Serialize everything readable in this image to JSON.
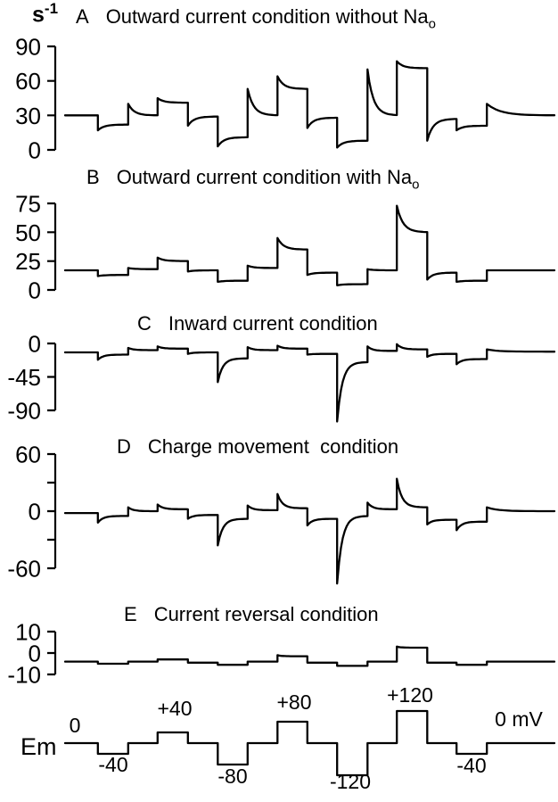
{
  "figure": {
    "unit_base": "s",
    "unit_exponent": "-1",
    "background": "#ffffff",
    "line_color": "#000000"
  },
  "protocol": {
    "axis_label": "Em",
    "start_label": "0",
    "end_label": "0 mV",
    "unit": "mV",
    "step_labels": [
      {
        "text": "-40"
      },
      {
        "text": "+40"
      },
      {
        "text": "-80"
      },
      {
        "text": "+80"
      },
      {
        "text": "-120"
      },
      {
        "text": "+120"
      },
      {
        "text": "-40"
      }
    ]
  },
  "chart_data": {
    "type": "line",
    "description": "Simulated turnover traces (s-1) of five pump conditions A-E responding to the membrane potential step protocol Em; x axis is time, shared protocol timing for all panels",
    "time_bounds": [
      0,
      0.067,
      0.129,
      0.189,
      0.251,
      0.312,
      0.373,
      0.434,
      0.495,
      0.556,
      0.618,
      0.678,
      0.74,
      0.8,
      0.862,
      1.0
    ],
    "voltage_steps_mV": [
      0,
      -40,
      0,
      40,
      0,
      -80,
      0,
      80,
      0,
      -120,
      0,
      120,
      0,
      -40,
      0
    ],
    "panels": [
      {
        "panel_label": "A",
        "title": "Outward current condition without Na",
        "title_subscript": "o",
        "ylabel": "s-1",
        "ylim": [
          0,
          90
        ],
        "yticks": [
          {
            "v": 90,
            "label": "90"
          },
          {
            "v": 60,
            "label": "60"
          },
          {
            "v": 30,
            "label": "30"
          },
          {
            "v": 0,
            "label": "0"
          }
        ],
        "relax_rate": 5,
        "segments": [
          [
            30,
            30
          ],
          [
            17,
            22
          ],
          [
            40,
            30
          ],
          [
            45,
            41
          ],
          [
            21,
            29
          ],
          [
            3,
            11
          ],
          [
            53,
            30
          ],
          [
            64,
            53
          ],
          [
            19,
            28
          ],
          [
            2,
            8
          ],
          [
            70,
            30
          ],
          [
            77,
            71
          ],
          [
            8,
            27
          ],
          [
            17,
            21
          ],
          [
            40,
            30
          ]
        ]
      },
      {
        "panel_label": "B",
        "title": "Outward current condition with Na",
        "title_subscript": "o",
        "ylabel": "s-1",
        "ylim": [
          0,
          75
        ],
        "yticks": [
          {
            "v": 75,
            "label": "75"
          },
          {
            "v": 50,
            "label": "50"
          },
          {
            "v": 25,
            "label": "25"
          },
          {
            "v": 0,
            "label": "0"
          }
        ],
        "relax_rate": 5,
        "segments": [
          [
            17,
            17
          ],
          [
            12,
            13
          ],
          [
            19,
            18
          ],
          [
            28,
            25
          ],
          [
            16,
            17
          ],
          [
            7,
            8
          ],
          [
            21,
            19
          ],
          [
            45,
            35
          ],
          [
            13,
            15
          ],
          [
            4,
            5
          ],
          [
            18,
            17
          ],
          [
            73,
            50
          ],
          [
            9,
            15
          ],
          [
            7,
            8
          ],
          [
            17,
            17
          ]
        ]
      },
      {
        "panel_label": "C",
        "title": "Inward current condition",
        "title_subscript": "",
        "ylabel": "s-1",
        "ylim": [
          -90,
          0
        ],
        "yticks": [
          {
            "v": 0,
            "label": "0"
          },
          {
            "v": -45,
            "label": "-45"
          },
          {
            "v": -90,
            "label": "-90"
          }
        ],
        "relax_rate": 6,
        "segments": [
          [
            -12,
            -12
          ],
          [
            -22,
            -15
          ],
          [
            -6,
            -9
          ],
          [
            -4,
            -7
          ],
          [
            -14,
            -12
          ],
          [
            -52,
            -20
          ],
          [
            -5,
            -9
          ],
          [
            -3,
            -7
          ],
          [
            -15,
            -14
          ],
          [
            -105,
            -25
          ],
          [
            -4,
            -10
          ],
          [
            -1,
            -8
          ],
          [
            -18,
            -14
          ],
          [
            -28,
            -21
          ],
          [
            -8,
            -11
          ]
        ]
      },
      {
        "panel_label": "D",
        "title": "Charge movement  condition",
        "title_subscript": "",
        "ylabel": "s-1",
        "ylim": [
          -60,
          60
        ],
        "yticks": [
          {
            "v": 60,
            "label": "60"
          },
          {
            "v": 30,
            "label": ""
          },
          {
            "v": 0,
            "label": "0"
          },
          {
            "v": -30,
            "label": ""
          },
          {
            "v": -60,
            "label": "-60"
          }
        ],
        "relax_rate": 6,
        "segments": [
          [
            -2,
            -2
          ],
          [
            -12,
            -5
          ],
          [
            4,
            0
          ],
          [
            7,
            2
          ],
          [
            -8,
            -4
          ],
          [
            -36,
            -8
          ],
          [
            6,
            1
          ],
          [
            18,
            3
          ],
          [
            -15,
            -8
          ],
          [
            -76,
            -5
          ],
          [
            9,
            2
          ],
          [
            34,
            4
          ],
          [
            -14,
            -9
          ],
          [
            -20,
            -11
          ],
          [
            4,
            0
          ]
        ]
      },
      {
        "panel_label": "E",
        "title": "Current reversal condition",
        "title_subscript": "",
        "ylabel": "s-1",
        "ylim": [
          -10,
          10
        ],
        "yticks": [
          {
            "v": 10,
            "label": "10"
          },
          {
            "v": 0,
            "label": "0"
          },
          {
            "v": -10,
            "label": "-10"
          }
        ],
        "relax_rate": 8,
        "segments": [
          [
            -4,
            -4
          ],
          [
            -5,
            -5
          ],
          [
            -4,
            -4
          ],
          [
            -3,
            -3
          ],
          [
            -4.5,
            -4.5
          ],
          [
            -5.5,
            -5.5
          ],
          [
            -4,
            -4
          ],
          [
            -1,
            -1.5
          ],
          [
            -4.5,
            -4.5
          ],
          [
            -6,
            -6
          ],
          [
            -4,
            -4
          ],
          [
            3,
            2.5
          ],
          [
            -4.5,
            -4.5
          ],
          [
            -5.5,
            -5.5
          ],
          [
            -4,
            -4
          ]
        ]
      },
      {
        "panel_label": "Em",
        "title": "",
        "title_subscript": "",
        "ylabel": "mV",
        "ylim": [
          -120,
          120
        ],
        "yticks": [],
        "relax_rate": 0,
        "segments": [
          [
            0,
            0
          ],
          [
            -40,
            -40
          ],
          [
            0,
            0
          ],
          [
            40,
            40
          ],
          [
            0,
            0
          ],
          [
            -80,
            -80
          ],
          [
            0,
            0
          ],
          [
            80,
            80
          ],
          [
            0,
            0
          ],
          [
            -120,
            -120
          ],
          [
            0,
            0
          ],
          [
            120,
            120
          ],
          [
            0,
            0
          ],
          [
            -40,
            -40
          ],
          [
            0,
            0
          ]
        ]
      }
    ]
  }
}
